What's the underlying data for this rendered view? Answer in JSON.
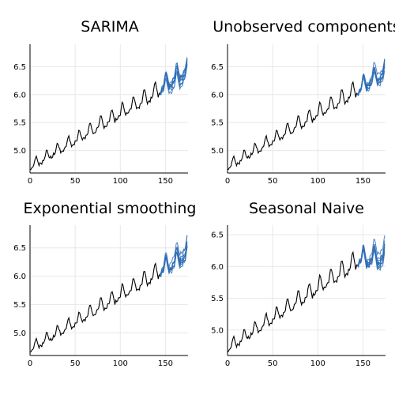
{
  "chart_data": [
    {
      "type": "line",
      "title": "SARIMA",
      "xlim": [
        0,
        175
      ],
      "ylim": [
        4.6,
        6.9
      ],
      "xticks": [
        0,
        50,
        100,
        150
      ],
      "yticks": [
        5.0,
        5.5,
        6.0,
        6.5
      ],
      "ytick_labels": [
        "5.0",
        "5.5",
        "6.0",
        "6.5"
      ],
      "history": {
        "start": 0,
        "end": 144,
        "y_start": 4.72,
        "y_end": 6.1,
        "seasonal_amplitude": 0.16
      },
      "forecast": {
        "start": 144,
        "end": 174,
        "base_start": 6.12,
        "base_end": 6.45,
        "seasonal_amplitude": 0.18,
        "paths": 10,
        "spread_growth": 0.012
      },
      "colors": {
        "history": "#000000",
        "forecast": "#2f6db6"
      }
    },
    {
      "type": "line",
      "title": "Unobserved components",
      "xlim": [
        0,
        175
      ],
      "ylim": [
        4.6,
        6.9
      ],
      "xticks": [
        0,
        50,
        100,
        150
      ],
      "yticks": [
        5.0,
        5.5,
        6.0,
        6.5
      ],
      "ytick_labels": [
        "5.0",
        "5.5",
        "6.0",
        "6.5"
      ],
      "history": {
        "start": 0,
        "end": 144,
        "y_start": 4.72,
        "y_end": 6.1,
        "seasonal_amplitude": 0.16
      },
      "forecast": {
        "start": 144,
        "end": 174,
        "base_start": 6.1,
        "base_end": 6.42,
        "seasonal_amplitude": 0.17,
        "paths": 10,
        "spread_growth": 0.01
      },
      "colors": {
        "history": "#000000",
        "forecast": "#2f6db6"
      }
    },
    {
      "type": "line",
      "title": "Exponential smoothing",
      "xlim": [
        0,
        175
      ],
      "ylim": [
        4.6,
        6.9
      ],
      "xticks": [
        0,
        50,
        100,
        150
      ],
      "yticks": [
        5.0,
        5.5,
        6.0,
        6.5
      ],
      "ytick_labels": [
        "5.0",
        "5.5",
        "6.0",
        "6.5"
      ],
      "history": {
        "start": 0,
        "end": 144,
        "y_start": 4.72,
        "y_end": 6.1,
        "seasonal_amplitude": 0.16
      },
      "forecast": {
        "start": 144,
        "end": 174,
        "base_start": 6.12,
        "base_end": 6.4,
        "seasonal_amplitude": 0.18,
        "paths": 10,
        "spread_growth": 0.012
      },
      "colors": {
        "history": "#000000",
        "forecast": "#2f6db6"
      }
    },
    {
      "type": "line",
      "title": "Seasonal Naive",
      "xlim": [
        0,
        175
      ],
      "ylim": [
        4.6,
        6.65
      ],
      "xticks": [
        0,
        50,
        100,
        150
      ],
      "yticks": [
        5.0,
        5.5,
        6.0,
        6.5
      ],
      "ytick_labels": [
        "5.0",
        "5.5",
        "6.0",
        "6.5"
      ],
      "history": {
        "start": 0,
        "end": 144,
        "y_start": 4.72,
        "y_end": 6.1,
        "seasonal_amplitude": 0.16
      },
      "forecast": {
        "start": 144,
        "end": 174,
        "base_start": 6.12,
        "base_end": 6.18,
        "seasonal_amplitude": 0.18,
        "paths": 10,
        "spread_growth": 0.008
      },
      "colors": {
        "history": "#000000",
        "forecast": "#2f6db6"
      }
    }
  ]
}
